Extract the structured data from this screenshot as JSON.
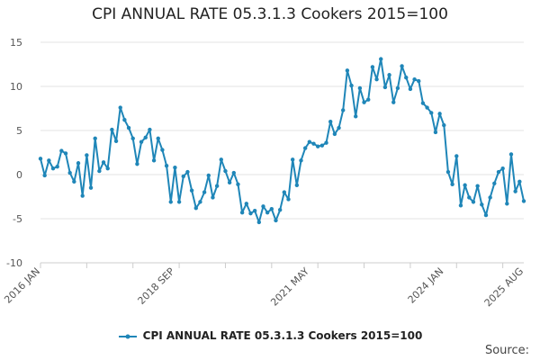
{
  "chart_data": {
    "type": "line",
    "title": "CPI ANNUAL RATE 05.3.1.3 Cookers 2015=100",
    "ylim": [
      -10,
      15
    ],
    "y_ticks": [
      -10,
      -5,
      0,
      5,
      10,
      15
    ],
    "x_tick_labels": [
      "2016 JAN",
      "2018 SEP",
      "2021 MAY",
      "2024 JAN",
      "2025 AUG"
    ],
    "x_start": "2016 JAN",
    "x_end": "2025 AUG",
    "grid": true,
    "legend_position": "bottom",
    "color": "#1f86b8",
    "series": [
      {
        "name": "CPI ANNUAL RATE 05.3.1.3 Cookers 2015=100",
        "values": [
          1.8,
          -0.1,
          1.6,
          0.7,
          0.9,
          2.7,
          2.4,
          0.2,
          -0.8,
          1.3,
          -2.4,
          2.2,
          -1.5,
          4.1,
          0.4,
          1.4,
          0.7,
          5.1,
          3.8,
          7.6,
          6.2,
          5.3,
          4.1,
          1.2,
          3.7,
          4.2,
          5.1,
          1.6,
          4.1,
          2.8,
          1.0,
          -3.1,
          0.8,
          -3.1,
          -0.2,
          0.3,
          -1.8,
          -3.8,
          -3.1,
          -2.0,
          -0.1,
          -2.6,
          -1.3,
          1.7,
          0.4,
          -0.9,
          0.2,
          -1.1,
          -4.3,
          -3.3,
          -4.4,
          -4.1,
          -5.4,
          -3.6,
          -4.3,
          -3.9,
          -5.2,
          -4.0,
          -2.0,
          -2.8,
          1.7,
          -1.2,
          1.6,
          3.0,
          3.7,
          3.5,
          3.2,
          3.3,
          3.6,
          6.0,
          4.6,
          5.3,
          7.3,
          11.8,
          10.1,
          6.6,
          9.8,
          8.2,
          8.5,
          12.2,
          10.8,
          13.1,
          9.9,
          11.3,
          8.2,
          9.8,
          12.3,
          11.0,
          9.7,
          10.8,
          10.6,
          8.1,
          7.6,
          7.0,
          4.8,
          6.9,
          5.6,
          0.3,
          -1.1,
          2.1,
          -3.5,
          -1.2,
          -2.6,
          -3.1,
          -1.3,
          -3.4,
          -4.6,
          -2.6,
          -1.0,
          0.3,
          0.7,
          -3.3,
          2.3,
          -1.9,
          -0.8,
          -3.0
        ]
      }
    ]
  },
  "source_label": "Source:"
}
